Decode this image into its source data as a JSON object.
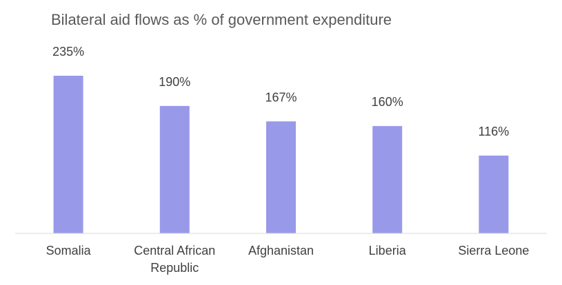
{
  "chart_data": {
    "type": "bar",
    "title": "Bilateral aid flows as % of government expenditure",
    "xlabel": "",
    "ylabel": "",
    "categories": [
      [
        "Somalia"
      ],
      [
        "Central African",
        "Republic"
      ],
      [
        "Afghanistan"
      ],
      [
        "Liberia"
      ],
      [
        "Sierra Leone"
      ]
    ],
    "values": [
      235,
      190,
      167,
      160,
      116
    ],
    "data_labels": [
      "235%",
      "190%",
      "167%",
      "160%",
      "116%"
    ],
    "ylim": [
      0,
      235
    ],
    "grid": false,
    "legend": "none",
    "bar_color": "#9999ea"
  }
}
